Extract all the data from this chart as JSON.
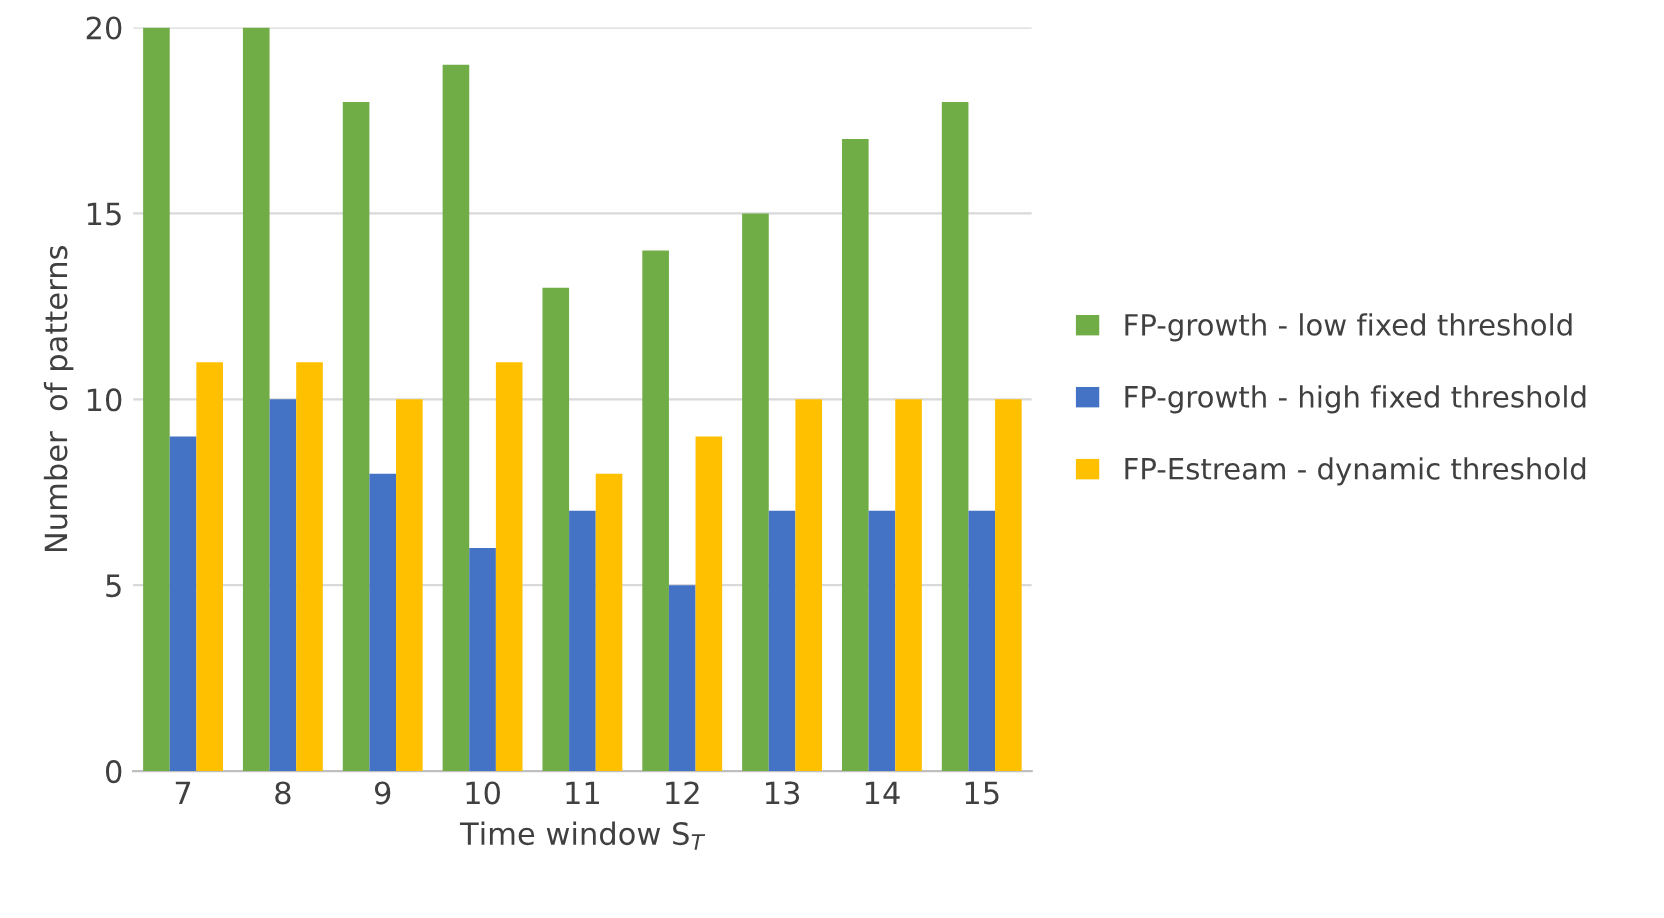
{
  "chart_data": {
    "type": "bar",
    "xlabel": "Time window S$_{T}$",
    "ylabel": "Number  of patterns",
    "categories": [
      "7",
      "8",
      "9",
      "10",
      "11",
      "12",
      "13",
      "14",
      "15"
    ],
    "series": [
      {
        "name": "FP-growth - low fixed threshold",
        "color": "#70ad47",
        "values": [
          20,
          20,
          18,
          19,
          13,
          14,
          15,
          17,
          18
        ]
      },
      {
        "name": "FP-growth - high fixed threshold",
        "color": "#4472c4",
        "values": [
          9,
          10,
          8,
          6,
          7,
          5,
          7,
          7,
          7
        ]
      },
      {
        "name": "FP-Estream - dynamic threshold",
        "color": "#ffc000",
        "values": [
          11,
          11,
          10,
          11,
          8,
          9,
          10,
          10,
          10
        ]
      }
    ],
    "ylim": [
      0,
      20
    ],
    "yticks": [
      0,
      5,
      10,
      15,
      20
    ],
    "grid": "y",
    "legend": "right"
  }
}
